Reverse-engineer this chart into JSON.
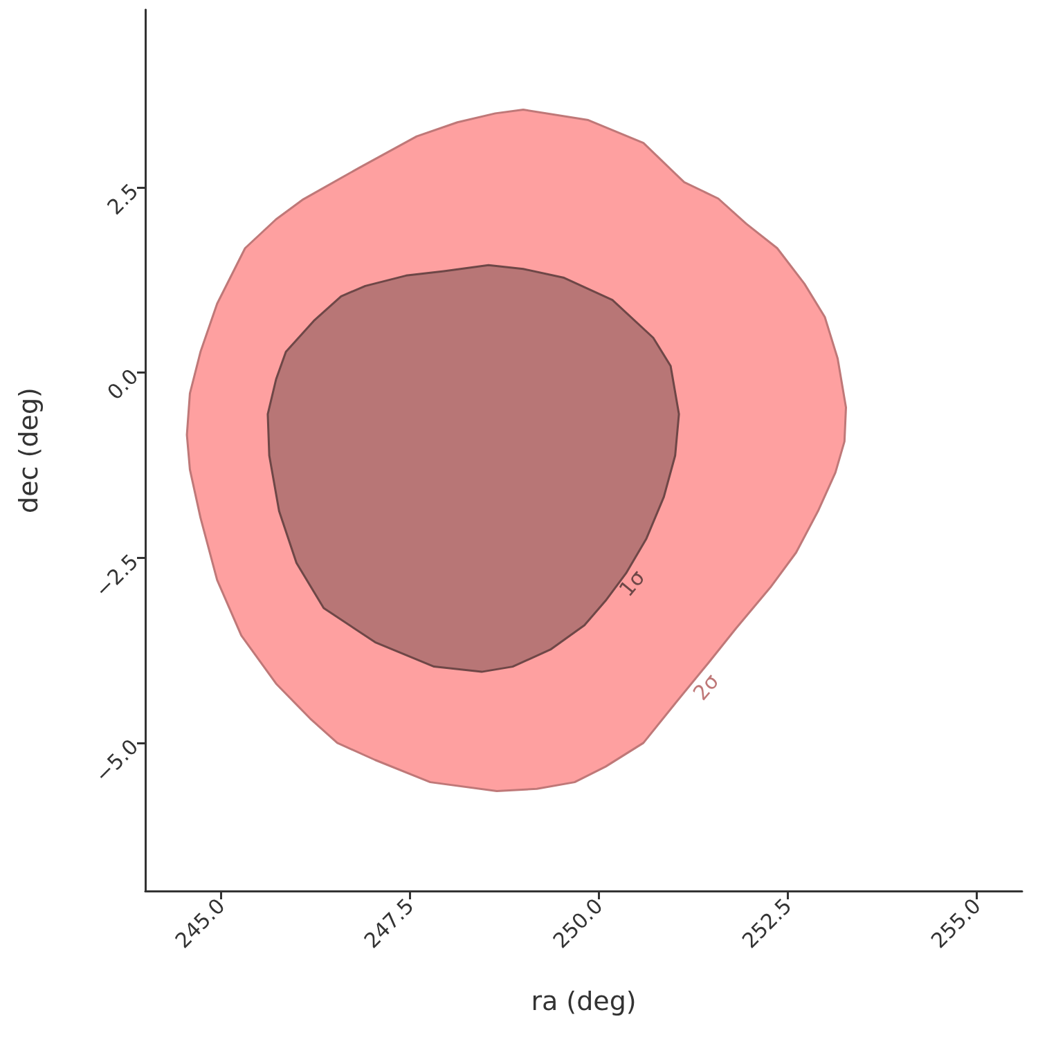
{
  "chart_data": {
    "type": "area",
    "xlabel": "ra (deg)",
    "ylabel": "dec (deg)",
    "series": [
      {
        "color": "#fea0a0",
        "x": [
          249.0,
          249.86,
          250.59,
          251.13,
          251.58,
          251.95,
          252.36,
          252.72,
          252.99,
          253.16,
          253.27,
          253.25,
          253.13,
          252.9,
          252.61,
          252.27,
          251.81,
          251.45,
          251.0,
          250.59,
          250.09,
          249.68,
          249.18,
          248.65,
          247.77,
          247.04,
          246.54,
          246.18,
          245.73,
          245.27,
          244.95,
          244.73,
          244.59,
          244.55,
          244.59,
          244.73,
          244.95,
          245.32,
          245.73,
          246.09,
          246.82,
          247.59,
          248.13,
          248.63
        ],
        "values": [
          3.55,
          3.41,
          3.1,
          2.57,
          2.35,
          2.01,
          1.68,
          1.2,
          0.75,
          0.19,
          -0.47,
          -0.93,
          -1.35,
          -1.87,
          -2.43,
          -2.9,
          -3.46,
          -3.92,
          -4.48,
          -5.0,
          -5.32,
          -5.53,
          -5.62,
          -5.65,
          -5.53,
          -5.23,
          -5.0,
          -4.67,
          -4.2,
          -3.55,
          -2.8,
          -1.96,
          -1.31,
          -0.84,
          -0.28,
          0.28,
          0.93,
          1.68,
          2.07,
          2.34,
          2.76,
          3.19,
          3.38,
          3.5
        ]
      },
      {
        "color": "#b87676",
        "x": [
          248.54,
          249.0,
          249.54,
          250.18,
          250.72,
          250.95,
          251.06,
          251.01,
          250.86,
          250.63,
          250.36,
          250.09,
          249.81,
          249.36,
          248.86,
          248.45,
          247.82,
          247.04,
          246.36,
          246.0,
          245.77,
          245.64,
          245.62,
          245.73,
          245.86,
          246.23,
          246.59,
          246.91,
          247.45,
          247.95
        ],
        "values": [
          1.45,
          1.4,
          1.28,
          0.98,
          0.47,
          0.09,
          -0.56,
          -1.12,
          -1.68,
          -2.24,
          -2.71,
          -3.08,
          -3.41,
          -3.74,
          -3.97,
          -4.04,
          -3.97,
          -3.64,
          -3.18,
          -2.57,
          -1.87,
          -1.12,
          -0.56,
          -0.09,
          0.28,
          0.7,
          1.03,
          1.17,
          1.31,
          1.37
        ]
      }
    ],
    "annotations": [
      "2σ",
      "1σ"
    ],
    "xlim": [
      244.0,
      255.6
    ],
    "xticks": [
      {
        "value": 245,
        "label": "245.0"
      },
      {
        "value": 247.5,
        "label": "247.5"
      },
      {
        "value": 250,
        "label": "250.0"
      },
      {
        "value": 252.5,
        "label": "252.5"
      },
      {
        "value": 255,
        "label": "255.0"
      }
    ],
    "ylim": [
      -7.0,
      4.9
    ],
    "yticks": [
      {
        "value": -5,
        "label": "−5.0"
      },
      {
        "value": -2.5,
        "label": "−2.5"
      },
      {
        "value": 0,
        "label": "0.0"
      },
      {
        "value": 2.5,
        "label": "2.5"
      }
    ],
    "grid": false
  }
}
